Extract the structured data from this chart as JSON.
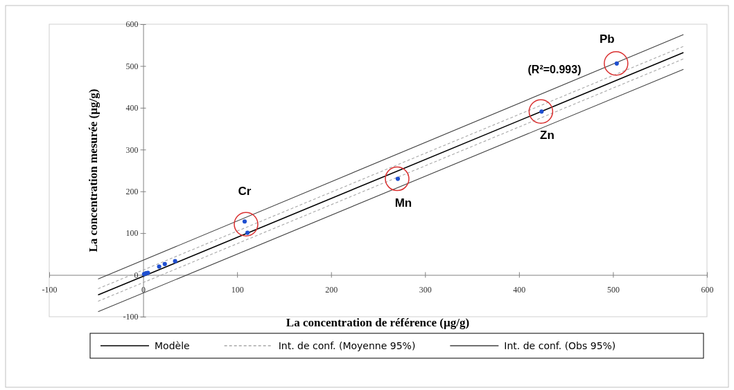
{
  "chart_data": {
    "type": "scatter",
    "xlabel": "La concentration de référence (µg/g)",
    "ylabel": "La concentration mesurée (µg/g)",
    "xlim": [
      -100,
      600
    ],
    "ylim": [
      -100,
      600
    ],
    "xticks": [
      -100,
      0,
      100,
      200,
      300,
      400,
      500,
      600
    ],
    "yticks": [
      -100,
      0,
      100,
      200,
      300,
      400,
      500,
      600
    ],
    "grid": false,
    "legend": "bottom",
    "series": [
      {
        "type": "line",
        "name": "Modèle",
        "color": "#000000",
        "line_style": "solid",
        "x": [
          -48,
          575
        ],
        "values": [
          -48,
          532
        ]
      },
      {
        "type": "line",
        "name": "Int. de conf. (Moyenne 95%)",
        "color": "#a6a6a6",
        "line_style": "dashed",
        "x": [
          -48,
          575
        ],
        "values": [
          -33,
          547
        ]
      },
      {
        "type": "line",
        "color": "#a6a6a6",
        "line_style": "dashed",
        "x": [
          -48,
          575
        ],
        "values": [
          -63,
          517
        ]
      },
      {
        "type": "line",
        "name": "Int. de conf. (Obs 95%)",
        "color": "#404040",
        "line_style": "solid",
        "x": [
          -48,
          575
        ],
        "values": [
          -10,
          575
        ]
      },
      {
        "type": "line",
        "color": "#404040",
        "line_style": "solid",
        "x": [
          -48,
          575
        ],
        "values": [
          -88,
          492
        ]
      },
      {
        "marker": "circle",
        "color": "#1f4fd0",
        "x": [
          1,
          3,
          5,
          17,
          23,
          34,
          108,
          111,
          271,
          424,
          504
        ],
        "values": [
          2,
          4,
          5,
          20,
          26,
          33,
          128,
          101,
          230,
          391,
          506
        ]
      }
    ],
    "annotations": [
      {
        "text": "Cr",
        "x": 108,
        "y": 128
      },
      {
        "text": "Mn",
        "x": 271,
        "y": 230
      },
      {
        "text": "Zn",
        "x": 424,
        "y": 391
      },
      {
        "text": "Pb",
        "x": 504,
        "y": 506
      },
      "(R²=0.993)"
    ]
  }
}
